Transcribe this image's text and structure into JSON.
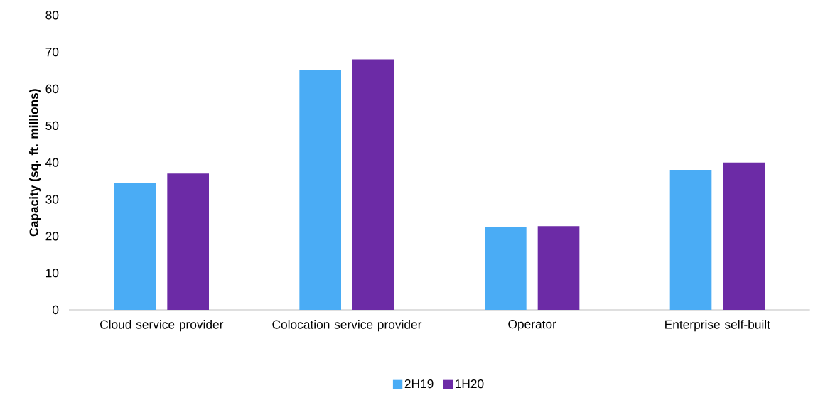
{
  "chart_data": {
    "type": "bar",
    "ylabel": "Capacity (sq. ft. millions)",
    "categories": [
      "Cloud service provider",
      "Colocation service provider",
      "Operator",
      "Enterprise self-built"
    ],
    "series": [
      {
        "name": "2H19",
        "color": "#4aacf5",
        "values": [
          34.5,
          65,
          22.4,
          38
        ]
      },
      {
        "name": "1H20",
        "color": "#6c2ba6",
        "values": [
          37,
          68,
          22.7,
          40
        ]
      }
    ],
    "ylim": [
      0,
      80
    ],
    "yticks": [
      0,
      10,
      20,
      30,
      40,
      50,
      60,
      70,
      80
    ],
    "grid": false,
    "legend": "bottom"
  }
}
